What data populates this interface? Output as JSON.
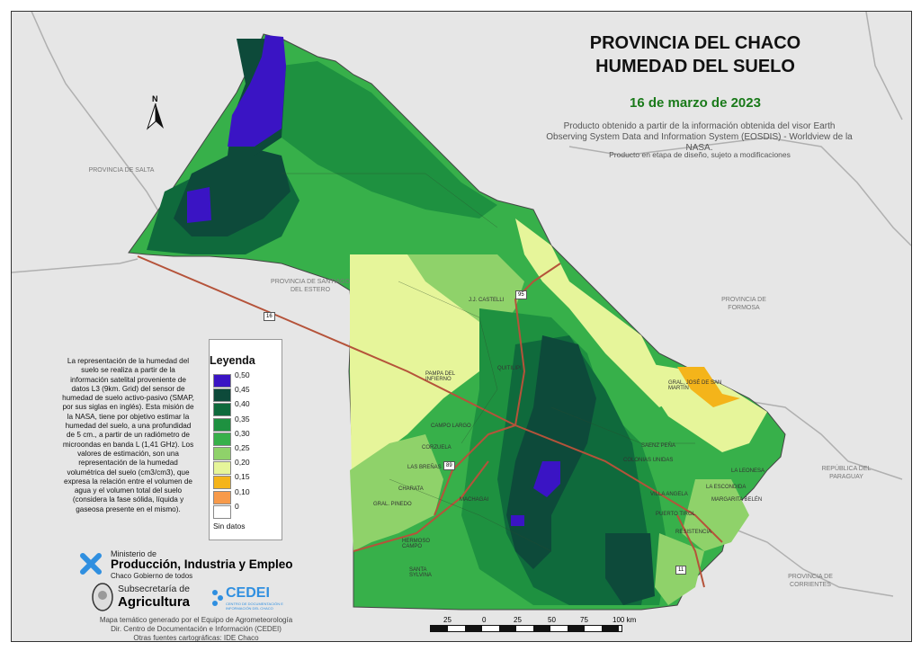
{
  "title_line1": "PROVINCIA DEL CHACO",
  "title_line2": "HUMEDAD DEL SUELO",
  "date": "16 de marzo de 2023",
  "source": "Producto obtenido a partir de la información obtenida del visor Earth Observing System Data and Information System (EOSDIS) - Worldview de la NASA.",
  "note": "Producto en etapa de diseño, sujeto a modificaciones",
  "neighbors": {
    "salta": "PROVINCIA DE SALTA",
    "santiago": "PROVINCIA DE SANTIAGO DEL ESTERO",
    "formosa": "PROVINCIA DE FORMOSA",
    "paraguay": "REPÚBLICA DEL PARAGUAY",
    "corrientes": "PROVINCIA DE CORRIENTES"
  },
  "towns": [
    {
      "name": "J.J. CASTELLI"
    },
    {
      "name": "PAMPA DEL INFIERNO"
    },
    {
      "name": "GRAL. JOSÉ DE SAN MARTÍN"
    },
    {
      "name": "CAMPO LARGO"
    },
    {
      "name": "CORZUELA"
    },
    {
      "name": "LAS BREÑAS"
    },
    {
      "name": "CHARATA"
    },
    {
      "name": "GRAL. PINEDO"
    },
    {
      "name": "HERMOSO CAMPO"
    },
    {
      "name": "SANTA SYLVINA"
    },
    {
      "name": "MACHAGAI"
    },
    {
      "name": "QUITILIPI"
    },
    {
      "name": "LA LEONESA"
    },
    {
      "name": "RESISTENCIA"
    },
    {
      "name": "PUERTO TIROL"
    },
    {
      "name": "SAENZ PEÑA"
    },
    {
      "name": "VILLA ANGELA"
    },
    {
      "name": "LA ESCONDIDA"
    },
    {
      "name": "COLONIAS UNIDAS"
    },
    {
      "name": "MARGARITA BELÉN"
    }
  ],
  "roads": [
    "95",
    "16",
    "89",
    "11"
  ],
  "legend": {
    "title": "Leyenda",
    "items": [
      {
        "label": "0,50",
        "color": "#3a14c4"
      },
      {
        "label": "0,45",
        "color": "#0d4a3a"
      },
      {
        "label": "0,40",
        "color": "#0f6a3c"
      },
      {
        "label": "0,35",
        "color": "#1e9140"
      },
      {
        "label": "0,30",
        "color": "#37b04a"
      },
      {
        "label": "0,25",
        "color": "#8fd26a"
      },
      {
        "label": "0,20",
        "color": "#e6f59a"
      },
      {
        "label": "0,15",
        "color": "#f4b41a"
      },
      {
        "label": "0,10",
        "color": "#f79a4a"
      },
      {
        "label": "0",
        "color": "#ffffff"
      },
      {
        "label": "Sin datos",
        "color": ""
      }
    ]
  },
  "description": "La representación de la humedad del suelo se realiza a partir de la información satelital proveniente de datos L3 (9km. Grid) del sensor de humedad de suelo activo-pasivo (SMAP, por sus siglas en inglés). Esta misión de la NASA, tiene por objetivo estimar la humedad del suelo, a una profundidad de 5 cm., a partir de un radiómetro de microondas en banda L (1,41 GHz). Los valores de estimación, son una representación de la humedad volumétrica del suelo (cm3/cm3), que expresa la relación entre el volumen de agua y el volumen total del suelo (considera la fase sólida, líquida y gaseosa presente en el mismo).",
  "logos": {
    "ministry_small": "Ministerio de",
    "ministry_main": "Producción, Industria y Empleo",
    "ministry_sub": "Chaco Gobierno de todos",
    "subsec_small": "Subsecretaría de",
    "subsec_main": "Agricultura",
    "cedei": "CEDEI",
    "cedei_sub": "CENTRO DE DOCUMENTACIÓN E INFORMACIÓN DEL CHACO"
  },
  "credits": {
    "line1": "Mapa temático generado por el Equipo de Agrometeorología",
    "line2": "Dir. Centro de Documentación e Información (CEDEI)",
    "line3": "Otras fuentes cartográficas: IDE Chaco"
  },
  "scale": {
    "labels": [
      "25",
      "0",
      "25",
      "50",
      "75",
      "100 km"
    ]
  },
  "north_label": "N",
  "colors": {
    "bg": "#e6e6e6",
    "road": "#b5533a",
    "border": "#555555"
  }
}
